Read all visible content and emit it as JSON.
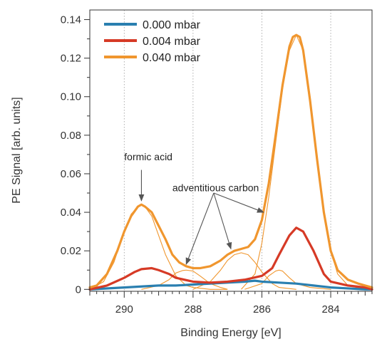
{
  "chart_data": {
    "type": "line",
    "title": "",
    "xlabel": "Binding Energy [eV]",
    "ylabel": "PE Signal [arb. units]",
    "xlim": [
      291.0,
      282.8
    ],
    "ylim": [
      -0.001,
      0.145
    ],
    "x_reversed": true,
    "x_ticks": [
      290,
      288,
      286,
      284
    ],
    "x_tick_labels": [
      "290",
      "288",
      "286",
      "284"
    ],
    "y_ticks": [
      0,
      0.02,
      0.04,
      0.06,
      0.08,
      0.1,
      0.12,
      0.14
    ],
    "y_tick_labels": [
      "0",
      "0.02",
      "0.04",
      "0.06",
      "0.08",
      "0.10",
      "0.12",
      "0.14"
    ],
    "grid": "vertical dotted lines at major x ticks",
    "legend_position": "top-left",
    "series": [
      {
        "name": "0.000 mbar",
        "color": "#2a7fb0",
        "x": [
          291.0,
          290.0,
          289.0,
          288.5,
          288.0,
          287.5,
          287.0,
          286.5,
          286.2,
          286.0,
          285.5,
          285.0,
          284.5,
          284.0,
          283.5,
          283.0,
          282.8
        ],
        "y": [
          0.0,
          0.001,
          0.002,
          0.002,
          0.0025,
          0.003,
          0.0035,
          0.004,
          0.0045,
          0.004,
          0.0035,
          0.003,
          0.002,
          0.001,
          0.0005,
          0.0,
          0.0
        ]
      },
      {
        "name": "0.004 mbar",
        "color": "#d63a26",
        "x": [
          291.0,
          290.5,
          290.0,
          289.7,
          289.5,
          289.2,
          289.0,
          288.7,
          288.5,
          288.0,
          287.5,
          287.0,
          286.5,
          286.0,
          285.7,
          285.5,
          285.2,
          285.0,
          284.8,
          284.5,
          284.2,
          284.0,
          283.5,
          283.0,
          282.8
        ],
        "y": [
          0.0,
          0.002,
          0.006,
          0.009,
          0.0105,
          0.011,
          0.01,
          0.008,
          0.006,
          0.004,
          0.0035,
          0.004,
          0.005,
          0.007,
          0.011,
          0.018,
          0.028,
          0.032,
          0.03,
          0.02,
          0.008,
          0.004,
          0.002,
          0.001,
          0.0
        ]
      },
      {
        "name": "0.040 mbar",
        "color": "#f0962e",
        "x": [
          291.0,
          290.8,
          290.5,
          290.2,
          290.0,
          289.8,
          289.6,
          289.5,
          289.4,
          289.2,
          289.0,
          288.8,
          288.6,
          288.4,
          288.2,
          288.0,
          287.8,
          287.5,
          287.2,
          287.0,
          286.8,
          286.6,
          286.4,
          286.2,
          286.0,
          285.8,
          285.6,
          285.4,
          285.2,
          285.1,
          285.0,
          284.9,
          284.8,
          284.6,
          284.4,
          284.2,
          284.0,
          283.8,
          283.5,
          283.2,
          283.0,
          282.8
        ],
        "y": [
          0.001,
          0.002,
          0.008,
          0.02,
          0.03,
          0.038,
          0.043,
          0.044,
          0.043,
          0.04,
          0.033,
          0.026,
          0.018,
          0.014,
          0.012,
          0.011,
          0.011,
          0.012,
          0.015,
          0.018,
          0.02,
          0.021,
          0.022,
          0.026,
          0.036,
          0.055,
          0.08,
          0.106,
          0.126,
          0.131,
          0.132,
          0.131,
          0.124,
          0.098,
          0.068,
          0.04,
          0.02,
          0.01,
          0.005,
          0.003,
          0.002,
          0.001
        ]
      }
    ],
    "fit_components": [
      {
        "color": "#f0962e",
        "x": [
          291.0,
          290.6,
          290.3,
          290.0,
          289.8,
          289.6,
          289.5,
          289.4,
          289.2,
          289.0,
          288.8,
          288.5,
          288.2,
          288.0,
          287.5,
          287.0
        ],
        "y": [
          0.0,
          0.004,
          0.014,
          0.03,
          0.039,
          0.043,
          0.044,
          0.043,
          0.038,
          0.028,
          0.018,
          0.007,
          0.002,
          0.001,
          0.0,
          0.0
        ]
      },
      {
        "color": "#f0962e",
        "x": [
          289.5,
          289.0,
          288.7,
          288.5,
          288.3,
          288.2,
          288.0,
          287.8,
          287.5,
          287.2,
          287.0
        ],
        "y": [
          0.0,
          0.002,
          0.005,
          0.0085,
          0.0098,
          0.01,
          0.0095,
          0.007,
          0.003,
          0.001,
          0.0
        ]
      },
      {
        "color": "#f0962e",
        "x": [
          288.0,
          287.5,
          287.2,
          287.0,
          286.8,
          286.6,
          286.4,
          286.2,
          286.0,
          285.7,
          285.5,
          285.0
        ],
        "y": [
          0.0,
          0.004,
          0.01,
          0.015,
          0.018,
          0.019,
          0.018,
          0.014,
          0.009,
          0.003,
          0.001,
          0.0
        ]
      },
      {
        "color": "#f0962e",
        "x": [
          286.6,
          286.2,
          286.0,
          285.8,
          285.6,
          285.4,
          285.2,
          285.0,
          284.8,
          284.6,
          284.4,
          284.2,
          284.0,
          283.8,
          283.5,
          283.0
        ],
        "y": [
          0.0,
          0.008,
          0.024,
          0.048,
          0.076,
          0.104,
          0.124,
          0.132,
          0.124,
          0.1,
          0.07,
          0.04,
          0.02,
          0.008,
          0.002,
          0.0
        ]
      },
      {
        "color": "#f0962e",
        "x": [
          286.5,
          286.0,
          285.8,
          285.6,
          285.5,
          285.4,
          285.2,
          285.0,
          284.6,
          284.0
        ],
        "y": [
          0.0,
          0.003,
          0.007,
          0.0095,
          0.01,
          0.0095,
          0.006,
          0.003,
          0.001,
          0.0
        ]
      }
    ],
    "annotations": [
      {
        "label": "formic acid",
        "text_at": [
          290.0,
          0.067
        ],
        "arrows": [
          {
            "from": [
              289.5,
              0.062
            ],
            "to": [
              289.5,
              0.046
            ]
          }
        ]
      },
      {
        "label": "adventitious carbon",
        "text_at": [
          288.6,
          0.051
        ],
        "arrows": [
          {
            "from": [
              287.4,
              0.05
            ],
            "to": [
              288.2,
              0.013
            ]
          },
          {
            "from": [
              287.4,
              0.05
            ],
            "to": [
              286.9,
              0.021
            ]
          },
          {
            "from": [
              287.4,
              0.05
            ],
            "to": [
              285.95,
              0.04
            ]
          }
        ]
      }
    ]
  }
}
